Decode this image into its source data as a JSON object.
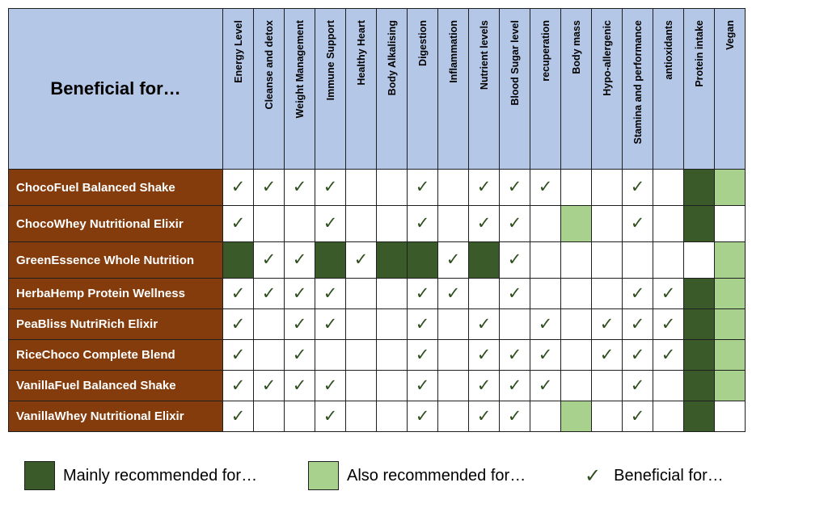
{
  "corner_label": "Beneficial for…",
  "columns": [
    "Energy Level",
    "Cleanse and detox",
    "Weight Management",
    "Immune  Support",
    "Healthy Heart",
    "Body Alkalising",
    "Digestion",
    "Inflammation",
    "Nutrient levels",
    "Blood Sugar level",
    "recuperation",
    "Body mass",
    "Hypo-allergenic",
    "Stamina and performance",
    "antioxidants",
    "Protein intake",
    "Vegan"
  ],
  "check_symbol": "✓",
  "rows": [
    {
      "name": "ChocoFuel Balanced Shake",
      "cells": [
        "C",
        "C",
        "C",
        "C",
        "",
        "",
        "C",
        "",
        "C",
        "C",
        "C",
        "",
        "",
        "C",
        "",
        "M",
        "A"
      ]
    },
    {
      "name": "ChocoWhey Nutritional Elixir",
      "cells": [
        "C",
        "",
        "",
        "C",
        "",
        "",
        "C",
        "",
        "C",
        "C",
        "",
        "A",
        "",
        "C",
        "",
        "M",
        ""
      ]
    },
    {
      "name": "GreenEssence Whole Nutrition",
      "cells": [
        "M",
        "C",
        "C",
        "M",
        "C",
        "M",
        "M",
        "C",
        "M",
        "C",
        "",
        "",
        "",
        "",
        "",
        "",
        "A"
      ]
    },
    {
      "name": "HerbaHemp Protein Wellness",
      "cells": [
        "C",
        "C",
        "C",
        "C",
        "",
        "",
        "C",
        "C",
        "",
        "C",
        "",
        "",
        "",
        "C",
        "C",
        "M",
        "A"
      ]
    },
    {
      "name": "PeaBliss NutriRich Elixir",
      "cells": [
        "C",
        "",
        "C",
        "C",
        "",
        "",
        "C",
        "",
        "C",
        "",
        "C",
        "",
        "C",
        "C",
        "C",
        "M",
        "A"
      ]
    },
    {
      "name": "RiceChoco Complete Blend",
      "cells": [
        "C",
        "",
        "C",
        "",
        "",
        "",
        "C",
        "",
        "C",
        "C",
        "C",
        "",
        "C",
        "C",
        "C",
        "M",
        "A"
      ]
    },
    {
      "name": "VanillaFuel Balanced Shake",
      "cells": [
        "C",
        "C",
        "C",
        "C",
        "",
        "",
        "C",
        "",
        "C",
        "C",
        "C",
        "",
        "",
        "C",
        "",
        "M",
        "A"
      ]
    },
    {
      "name": "VanillaWhey Nutritional Elixir",
      "cells": [
        "C",
        "",
        "",
        "C",
        "",
        "",
        "C",
        "",
        "C",
        "C",
        "",
        "A",
        "",
        "C",
        "",
        "M",
        ""
      ]
    }
  ],
  "legend": {
    "main": "Mainly recommended for…",
    "also": "Also recommended for…",
    "check": "Beneficial for…"
  },
  "colors": {
    "main": "#3b5a2a",
    "also": "#a9d18e",
    "name_bg": "#843c0c",
    "header_bg": "#b4c7e7"
  },
  "icons": {
    "check": "check-icon"
  }
}
